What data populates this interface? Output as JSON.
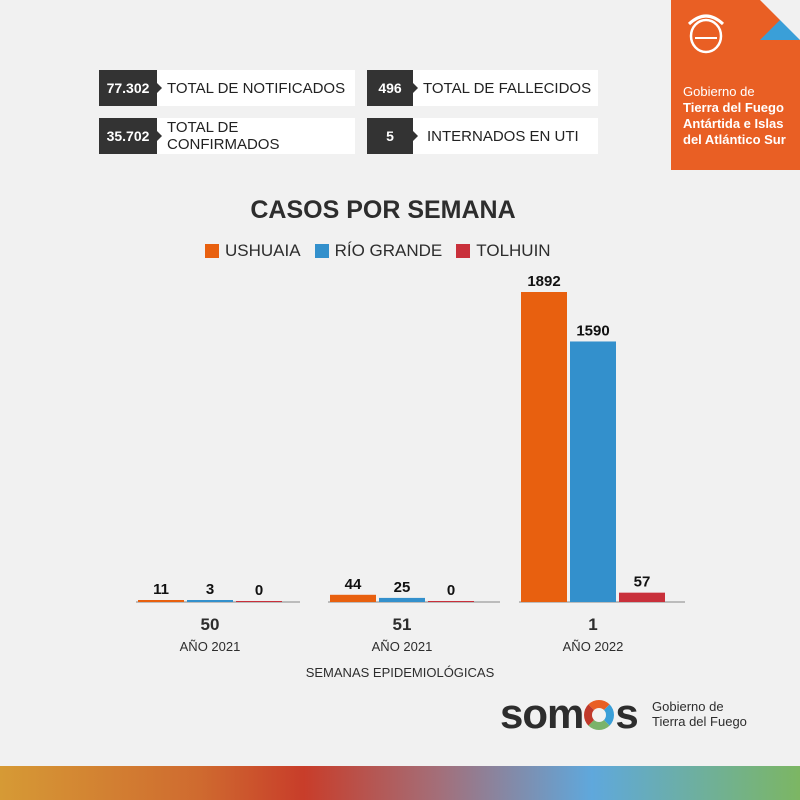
{
  "stats": [
    {
      "value": "77.302",
      "label": "TOTAL DE NOTIFICADOS"
    },
    {
      "value": "496",
      "label": "TOTAL DE FALLECIDOS"
    },
    {
      "value": "35.702",
      "label": "TOTAL DE CONFIRMADOS"
    },
    {
      "value": "5",
      "label": "INTERNADOS EN UTI"
    }
  ],
  "gov_badge": {
    "line1": "Gobierno de",
    "line2": "Tierra del Fuego",
    "line3": "Antártida e Islas",
    "line4": "del Atlántico Sur"
  },
  "footer": {
    "brand": "somos",
    "gov1": "Gobierno de",
    "gov2": "Tierra del Fuego"
  },
  "chart_data": {
    "type": "bar",
    "title": "CASOS POR SEMANA",
    "xlabel": "SEMANAS EPIDEMIOLÓGICAS",
    "categories": [
      "50",
      "51",
      "1"
    ],
    "category_years": [
      "AÑO 2021",
      "AÑO 2021",
      "AÑO 2022"
    ],
    "series": [
      {
        "name": "USHUAIA",
        "color": "#e8600f",
        "values": [
          11,
          44,
          1892
        ]
      },
      {
        "name": "RÍO GRANDE",
        "color": "#3390cc",
        "values": [
          3,
          25,
          1590
        ]
      },
      {
        "name": "TOLHUIN",
        "color": "#c9303b",
        "values": [
          0,
          0,
          57
        ]
      }
    ],
    "ylim": [
      0,
      1892
    ],
    "legend": "top"
  }
}
